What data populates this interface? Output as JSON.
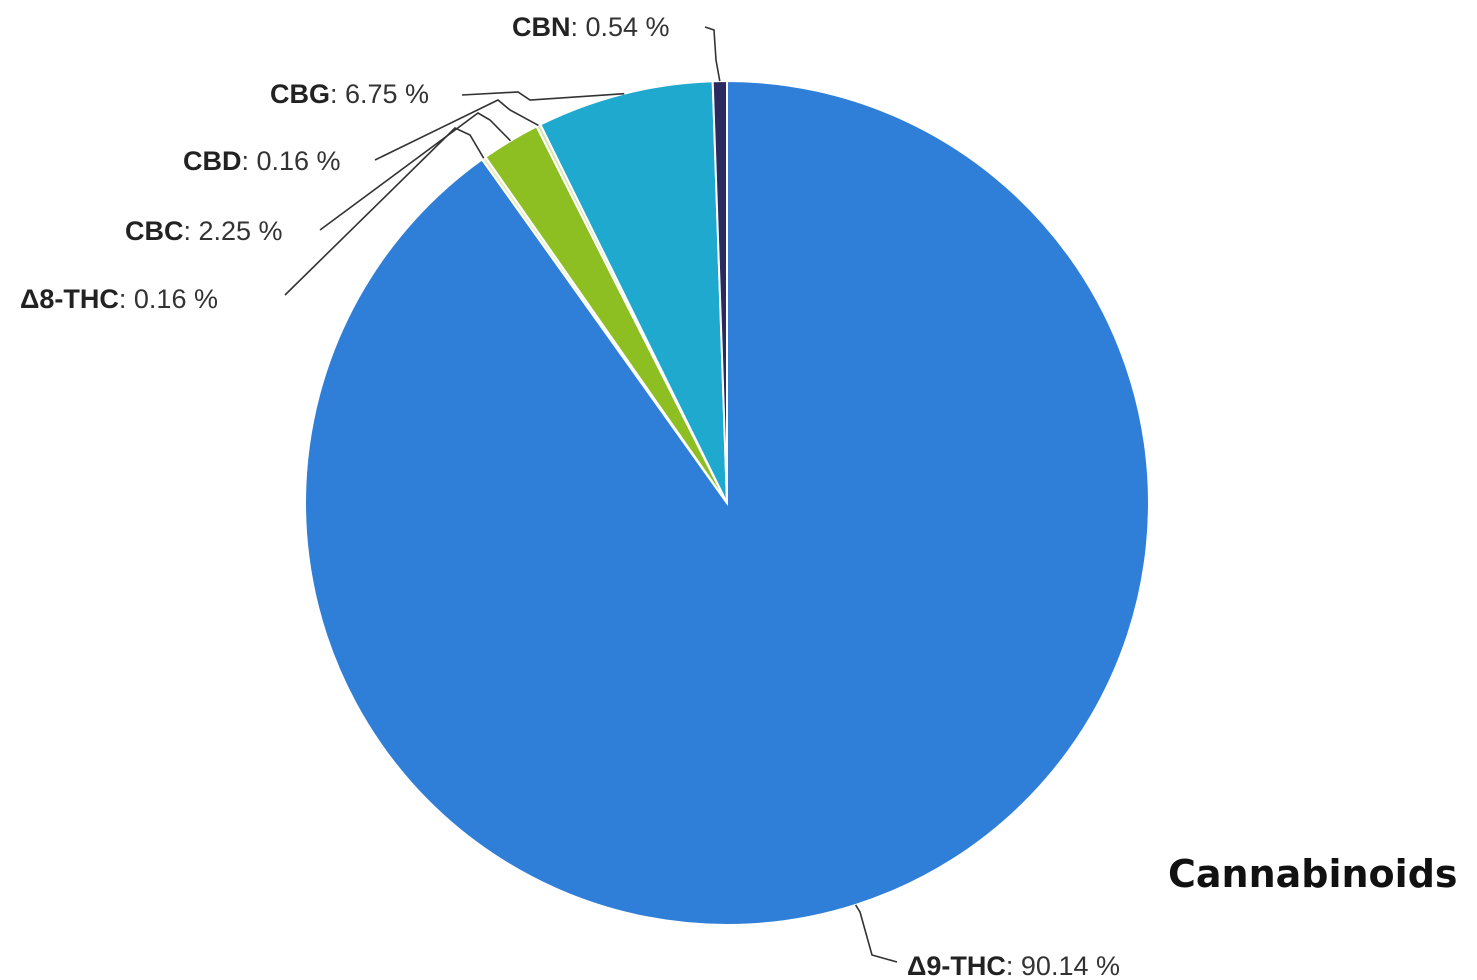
{
  "chart_data": {
    "type": "pie",
    "title": "Cannabinoids",
    "unit": "%",
    "slices": [
      {
        "name": "Δ9-THC",
        "value": 90.14,
        "color": "#2f7fd8",
        "label": "90.14 %"
      },
      {
        "name": "Δ8-THC",
        "value": 0.16,
        "color": "#e8ecc0",
        "label": "0.16 %"
      },
      {
        "name": "CBC",
        "value": 2.25,
        "color": "#8dbf22",
        "label": "2.25 %"
      },
      {
        "name": "CBD",
        "value": 0.16,
        "color": "#d8e4b0",
        "label": "0.16 %"
      },
      {
        "name": "CBG",
        "value": 6.75,
        "color": "#1fa9cf",
        "label": "6.75 %"
      },
      {
        "name": "CBN",
        "value": 0.54,
        "color": "#2b2a5e",
        "label": "0.54 %"
      }
    ]
  }
}
